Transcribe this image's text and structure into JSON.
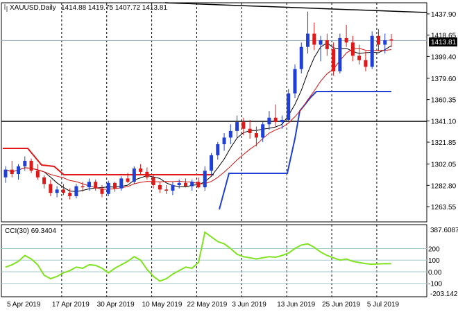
{
  "header": {
    "symbol": "XAUUSD,Daily",
    "ohlc": "1414.88 1419.75 1407.72 1413.81"
  },
  "price_axis": {
    "ticks": [
      "1437.90",
      "1418.65",
      "1399.40",
      "1379.60",
      "1360.35",
      "1341.10",
      "1321.85",
      "1302.05",
      "1282.80",
      "1263.55"
    ],
    "tick_values": [
      1437.9,
      1418.65,
      1399.4,
      1379.6,
      1360.35,
      1341.1,
      1321.85,
      1302.05,
      1282.8,
      1263.55
    ],
    "current_price": "1413.81",
    "current_value": 1413.81
  },
  "cci": {
    "label": "CCI(30) 69.3404",
    "max_label": "387.6087",
    "min_label": "-203.1423",
    "levels": [
      "200",
      "100",
      "0.00",
      "-100"
    ]
  },
  "time_axis": {
    "labels": [
      "5 Apr 2019",
      "17 Apr 2019",
      "30 Apr 2019",
      "10 May 2019",
      "22 May 2019",
      "3 Jun 2019",
      "13 Jun 2019",
      "25 Jun 2019",
      "5 Jul 2019"
    ]
  },
  "colors": {
    "bull": "#1f3fd6",
    "bear": "#e01818",
    "ma_fast": "#000000",
    "ma_slow": "#d41111",
    "trail": "#1f3fd6",
    "cci_line": "#7fe320",
    "level_line": "#a7c9c9"
  },
  "chart_data": {
    "type": "candlestick",
    "dates": [
      "2019-04-05",
      "2019-04-17",
      "2019-04-30",
      "2019-05-10",
      "2019-05-22",
      "2019-06-03",
      "2019-06-13",
      "2019-06-25",
      "2019-07-05"
    ],
    "candles": [
      [
        1290,
        1300,
        1285,
        1297
      ],
      [
        1297,
        1305,
        1290,
        1293
      ],
      [
        1293,
        1302,
        1288,
        1300
      ],
      [
        1300,
        1309,
        1296,
        1305
      ],
      [
        1305,
        1307,
        1294,
        1296
      ],
      [
        1296,
        1302,
        1288,
        1290
      ],
      [
        1290,
        1292,
        1280,
        1284
      ],
      [
        1284,
        1288,
        1273,
        1276
      ],
      [
        1276,
        1282,
        1272,
        1279
      ],
      [
        1279,
        1284,
        1274,
        1276
      ],
      [
        1276,
        1280,
        1270,
        1273
      ],
      [
        1273,
        1284,
        1271,
        1282
      ],
      [
        1282,
        1286,
        1277,
        1281
      ],
      [
        1281,
        1289,
        1278,
        1286
      ],
      [
        1286,
        1288,
        1278,
        1280
      ],
      [
        1280,
        1283,
        1272,
        1275
      ],
      [
        1275,
        1287,
        1273,
        1285
      ],
      [
        1285,
        1286,
        1277,
        1280
      ],
      [
        1280,
        1291,
        1278,
        1289
      ],
      [
        1289,
        1294,
        1285,
        1286
      ],
      [
        1286,
        1300,
        1284,
        1298
      ],
      [
        1298,
        1302,
        1292,
        1295
      ],
      [
        1295,
        1299,
        1288,
        1290
      ],
      [
        1290,
        1292,
        1280,
        1283
      ],
      [
        1283,
        1286,
        1276,
        1279
      ],
      [
        1279,
        1283,
        1275,
        1278
      ],
      [
        1278,
        1286,
        1274,
        1283
      ],
      [
        1283,
        1288,
        1280,
        1285
      ],
      [
        1285,
        1289,
        1281,
        1282
      ],
      [
        1282,
        1288,
        1278,
        1286
      ],
      [
        1286,
        1290,
        1280,
        1281
      ],
      [
        1281,
        1300,
        1278,
        1296
      ],
      [
        1296,
        1312,
        1292,
        1310
      ],
      [
        1310,
        1322,
        1306,
        1320
      ],
      [
        1320,
        1330,
        1314,
        1326
      ],
      [
        1326,
        1338,
        1320,
        1332
      ],
      [
        1332,
        1346,
        1326,
        1340
      ],
      [
        1340,
        1344,
        1328,
        1334
      ],
      [
        1334,
        1342,
        1325,
        1330
      ],
      [
        1330,
        1336,
        1318,
        1326
      ],
      [
        1326,
        1340,
        1322,
        1338
      ],
      [
        1338,
        1350,
        1333,
        1344
      ],
      [
        1344,
        1356,
        1336,
        1340
      ],
      [
        1340,
        1346,
        1334,
        1342
      ],
      [
        1342,
        1370,
        1340,
        1366
      ],
      [
        1366,
        1392,
        1362,
        1388
      ],
      [
        1388,
        1412,
        1384,
        1408
      ],
      [
        1408,
        1440,
        1402,
        1420
      ],
      [
        1420,
        1430,
        1405,
        1410
      ],
      [
        1410,
        1418,
        1395,
        1414
      ],
      [
        1414,
        1420,
        1400,
        1406
      ],
      [
        1406,
        1412,
        1382,
        1386
      ],
      [
        1386,
        1420,
        1384,
        1416
      ],
      [
        1416,
        1428,
        1408,
        1412
      ],
      [
        1412,
        1418,
        1395,
        1400
      ],
      [
        1400,
        1410,
        1392,
        1396
      ],
      [
        1396,
        1404,
        1386,
        1390
      ],
      [
        1390,
        1422,
        1388,
        1418
      ],
      [
        1418,
        1424,
        1404,
        1410
      ],
      [
        1410,
        1420,
        1402,
        1414
      ],
      [
        1414.88,
        1419.75,
        1407.72,
        1413.81
      ]
    ],
    "cci_values": [
      40,
      60,
      90,
      140,
      110,
      60,
      -30,
      -60,
      -40,
      -10,
      10,
      40,
      30,
      60,
      55,
      30,
      -10,
      30,
      60,
      90,
      130,
      100,
      20,
      -40,
      -80,
      -60,
      -20,
      10,
      40,
      30,
      80,
      340,
      300,
      260,
      240,
      200,
      150,
      130,
      120,
      110,
      120,
      130,
      125,
      140,
      160,
      200,
      230,
      240,
      210,
      170,
      140,
      120,
      100,
      110,
      90,
      80,
      70,
      65,
      68,
      70,
      69
    ]
  }
}
